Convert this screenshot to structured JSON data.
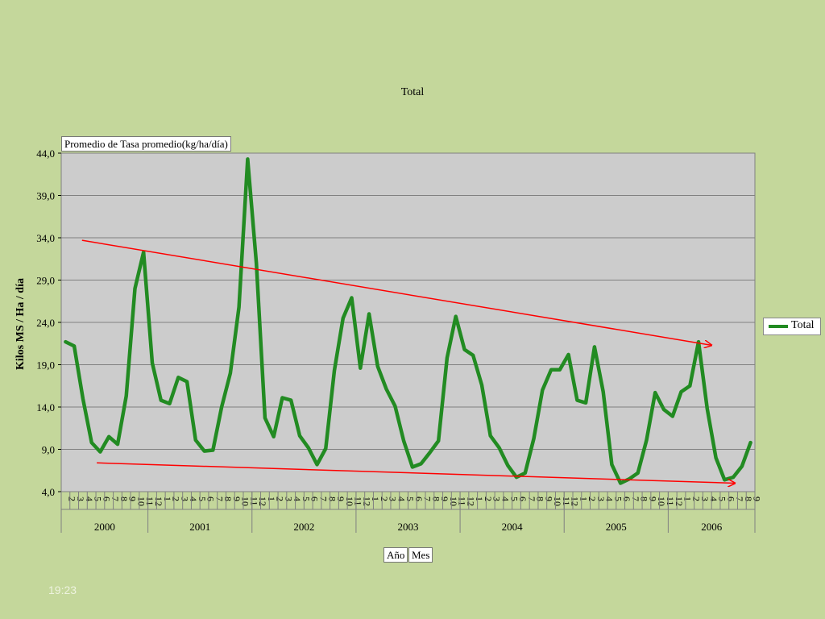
{
  "chart_data": {
    "type": "line",
    "title": "Total",
    "ylabel": "Kilos MS / Ha / día",
    "ylim": [
      4.0,
      44.0
    ],
    "yticks": [
      "4,0",
      "9,0",
      "14,0",
      "19,0",
      "24,0",
      "29,0",
      "34,0",
      "39,0",
      "44,0"
    ],
    "grid": true,
    "legend_position": "right",
    "data_field_label": "Promedio de Tasa promedio(kg/ha/día)",
    "axis_field_labels": [
      "Año",
      "Mes"
    ],
    "years": [
      {
        "label": "2000",
        "months": [
          "2",
          "3",
          "4",
          "5",
          "6",
          "7",
          "8",
          "9",
          "10",
          "11"
        ]
      },
      {
        "label": "2001",
        "months": [
          "12",
          "1",
          "2",
          "3",
          "4",
          "5",
          "6",
          "7",
          "8",
          "9",
          "10",
          "11"
        ]
      },
      {
        "label": "2002",
        "months": [
          "12",
          "1",
          "2",
          "3",
          "4",
          "5",
          "6",
          "7",
          "8",
          "9",
          "10",
          "11"
        ]
      },
      {
        "label": "2003",
        "months": [
          "12",
          "1",
          "2",
          "3",
          "4",
          "5",
          "6",
          "7",
          "8",
          "9",
          "10",
          "11"
        ]
      },
      {
        "label": "2004",
        "months": [
          "12",
          "1",
          "2",
          "3",
          "4",
          "5",
          "6",
          "7",
          "8",
          "9",
          "10",
          "11"
        ]
      },
      {
        "label": "2005",
        "months": [
          "12",
          "1",
          "2",
          "3",
          "4",
          "5",
          "6",
          "7",
          "8",
          "9",
          "10",
          "11"
        ]
      },
      {
        "label": "2006",
        "months": [
          "12",
          "1",
          "2",
          "3",
          "4",
          "5",
          "6",
          "7",
          "8",
          "9"
        ]
      }
    ],
    "series": [
      {
        "name": "Total",
        "color": "#228b22",
        "values": [
          21.7,
          21.2,
          15.0,
          9.8,
          8.7,
          10.5,
          9.6,
          15.3,
          28.0,
          32.3,
          19.2,
          14.8,
          14.4,
          17.5,
          17.0,
          10.1,
          8.8,
          8.9,
          14.0,
          18.0,
          25.8,
          43.3,
          31.0,
          12.7,
          10.5,
          15.1,
          14.8,
          10.6,
          9.2,
          7.2,
          9.1,
          18.3,
          24.5,
          26.9,
          18.6,
          25.0,
          18.8,
          16.1,
          14.1,
          10.0,
          6.9,
          7.3,
          8.6,
          10.0,
          19.8,
          24.7,
          20.8,
          20.1,
          16.6,
          10.6,
          9.2,
          7.1,
          5.7,
          6.2,
          10.3,
          16.0,
          18.4,
          18.4,
          20.2,
          14.8,
          14.5,
          21.1,
          15.8,
          7.2,
          5.0,
          5.5,
          6.2,
          10.1,
          15.7,
          13.7,
          12.9,
          15.8,
          16.5,
          21.7,
          13.8,
          8.0,
          5.4,
          5.7,
          7.0,
          9.8
        ]
      }
    ],
    "trend_annotations": [
      {
        "type": "arrow",
        "color": "#ff0000",
        "from": {
          "index": 1.9,
          "value": 33.7
        },
        "to": {
          "index": 74.5,
          "value": 21.3
        }
      },
      {
        "type": "arrow",
        "color": "#ff0000",
        "from": {
          "index": 3.6,
          "value": 7.4
        },
        "to": {
          "index": 77.2,
          "value": 5.0
        }
      }
    ]
  },
  "footer": {
    "time": "19:23"
  },
  "colors": {
    "background": "#c4d79b",
    "plot_area": "#cccccc",
    "series": "#228b22",
    "trend": "#ff0000"
  }
}
